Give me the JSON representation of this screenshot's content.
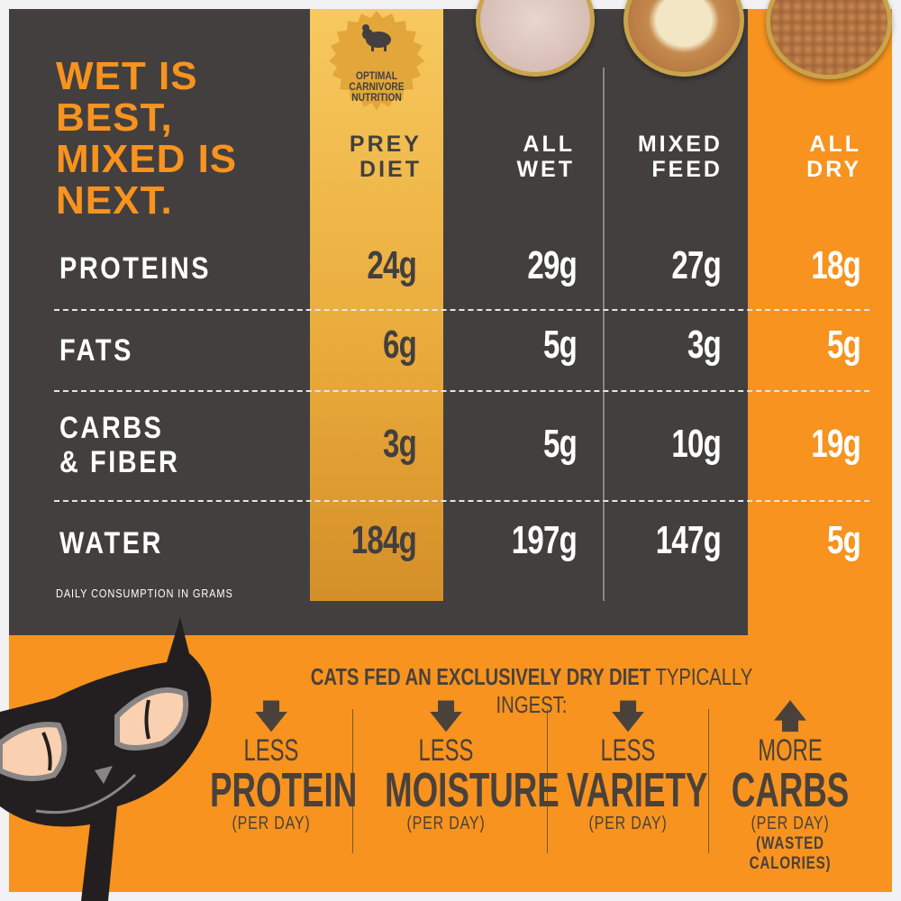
{
  "headline": [
    "WET IS",
    "BEST,",
    "MIXED IS",
    "NEXT."
  ],
  "badge": {
    "icon": "mouse-icon",
    "text": [
      "OPTIMAL",
      "CARNIVORE",
      "NUTRITION"
    ]
  },
  "columns": [
    {
      "label": [
        "PREY",
        "DIET"
      ]
    },
    {
      "label": [
        "ALL",
        "WET"
      ]
    },
    {
      "label": [
        "MIXED",
        "FEED"
      ]
    },
    {
      "label": [
        "ALL",
        "DRY"
      ]
    }
  ],
  "rows": [
    {
      "label": [
        "PROTEINS"
      ],
      "values": [
        "24g",
        "29g",
        "27g",
        "18g"
      ]
    },
    {
      "label": [
        "FATS"
      ],
      "values": [
        "6g",
        "5g",
        "3g",
        "5g"
      ]
    },
    {
      "label": [
        "CARBS",
        "& FIBER"
      ],
      "values": [
        "3g",
        "5g",
        "10g",
        "19g"
      ]
    },
    {
      "label": [
        "WATER"
      ],
      "values": [
        "184g",
        "197g",
        "147g",
        "5g"
      ]
    }
  ],
  "note": "DAILY CONSUMPTION IN GRAMS",
  "intro": {
    "bold": "CATS FED AN EXCLUSIVELY DRY DIET",
    "rest": " TYPICALLY INGEST:"
  },
  "effects": [
    {
      "arrow": "down",
      "small": "LESS",
      "big": "PROTEIN",
      "per": "(PER DAY)",
      "extra": ""
    },
    {
      "arrow": "down",
      "small": "LESS",
      "big": "MOISTURE",
      "per": "(PER DAY)",
      "extra": ""
    },
    {
      "arrow": "down",
      "small": "LESS",
      "big": "VARIETY",
      "per": "(PER DAY)",
      "extra": ""
    },
    {
      "arrow": "up",
      "small": "MORE",
      "big": "CARBS",
      "per": "(PER DAY)",
      "extra": "(WASTED CALORIES)"
    }
  ],
  "colors": {
    "dark": "#433f3f",
    "orange": "#f7931e",
    "gold": "#f0b94a",
    "text_brown": "#4a413b"
  }
}
